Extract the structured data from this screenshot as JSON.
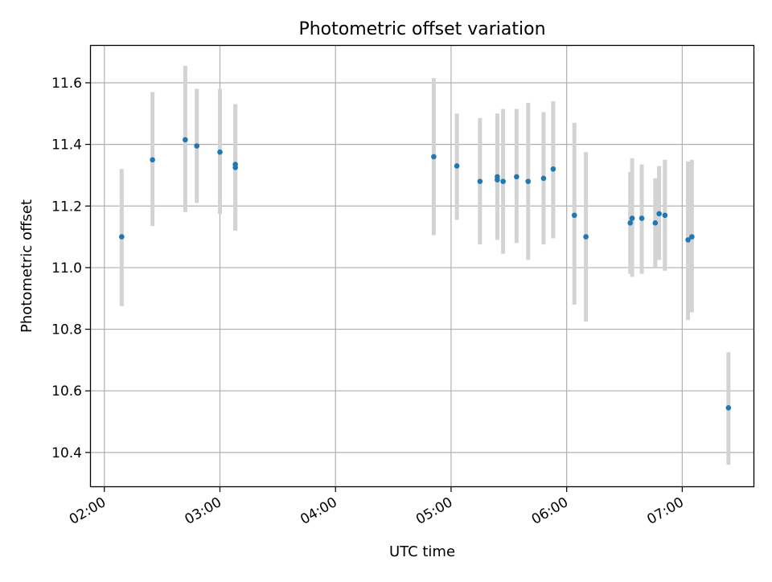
{
  "chart_data": {
    "type": "scatter",
    "title": "Photometric offset variation",
    "xlabel": "UTC time",
    "ylabel": "Photometric offset",
    "x_tick_labels": [
      "02:00",
      "03:00",
      "04:00",
      "05:00",
      "06:00",
      "07:00"
    ],
    "x_tick_minutes": [
      120,
      180,
      240,
      300,
      360,
      420
    ],
    "xlim": [
      "01:53",
      "07:37"
    ],
    "ylim": [
      10.29,
      11.72
    ],
    "y_ticks": [
      10.4,
      10.6,
      10.8,
      11.0,
      11.2,
      11.4,
      11.6
    ],
    "y_tick_labels": [
      "10.4",
      "10.6",
      "10.8",
      "11.0",
      "11.2",
      "11.4",
      "11.6"
    ],
    "grid": true,
    "colors": {
      "point": "#1f77b4",
      "errorbar": "#d3d3d3",
      "grid": "#b0b0b0"
    },
    "points": [
      {
        "t": "02:09",
        "y": 11.1,
        "low": 10.875,
        "high": 11.32
      },
      {
        "t": "02:25",
        "y": 11.35,
        "low": 11.135,
        "high": 11.57
      },
      {
        "t": "02:42",
        "y": 11.415,
        "low": 11.18,
        "high": 11.655
      },
      {
        "t": "02:48",
        "y": 11.395,
        "low": 11.21,
        "high": 11.58
      },
      {
        "t": "03:00",
        "y": 11.375,
        "low": 11.175,
        "high": 11.58
      },
      {
        "t": "03:08",
        "y": 11.335,
        "low": 11.12,
        "high": 11.53
      },
      {
        "t": "03:08",
        "y": 11.325,
        "low": 11.12,
        "high": 11.53
      },
      {
        "t": "04:51",
        "y": 11.36,
        "low": 11.105,
        "high": 11.615
      },
      {
        "t": "05:03",
        "y": 11.33,
        "low": 11.155,
        "high": 11.5
      },
      {
        "t": "05:15",
        "y": 11.28,
        "low": 11.075,
        "high": 11.485
      },
      {
        "t": "05:24",
        "y": 11.285,
        "low": 11.09,
        "high": 11.5
      },
      {
        "t": "05:24",
        "y": 11.295,
        "low": 11.09,
        "high": 11.5
      },
      {
        "t": "05:27",
        "y": 11.28,
        "low": 11.045,
        "high": 11.515
      },
      {
        "t": "05:34",
        "y": 11.295,
        "low": 11.08,
        "high": 11.515
      },
      {
        "t": "05:40",
        "y": 11.28,
        "low": 11.025,
        "high": 11.535
      },
      {
        "t": "05:48",
        "y": 11.29,
        "low": 11.075,
        "high": 11.505
      },
      {
        "t": "05:53",
        "y": 11.32,
        "low": 11.095,
        "high": 11.54
      },
      {
        "t": "06:04",
        "y": 11.17,
        "low": 10.88,
        "high": 11.47
      },
      {
        "t": "06:10",
        "y": 11.1,
        "low": 10.825,
        "high": 11.375
      },
      {
        "t": "06:33",
        "y": 11.145,
        "low": 10.98,
        "high": 11.31
      },
      {
        "t": "06:34",
        "y": 11.16,
        "low": 10.97,
        "high": 11.355
      },
      {
        "t": "06:39",
        "y": 11.16,
        "low": 10.98,
        "high": 11.335
      },
      {
        "t": "06:46",
        "y": 11.145,
        "low": 11.0,
        "high": 11.29
      },
      {
        "t": "06:48",
        "y": 11.175,
        "low": 11.025,
        "high": 11.33
      },
      {
        "t": "06:51",
        "y": 11.17,
        "low": 10.99,
        "high": 11.35
      },
      {
        "t": "07:03",
        "y": 11.09,
        "low": 10.83,
        "high": 11.345
      },
      {
        "t": "07:05",
        "y": 11.1,
        "low": 10.855,
        "high": 11.35
      },
      {
        "t": "07:24",
        "y": 10.545,
        "low": 10.36,
        "high": 10.725
      }
    ]
  }
}
